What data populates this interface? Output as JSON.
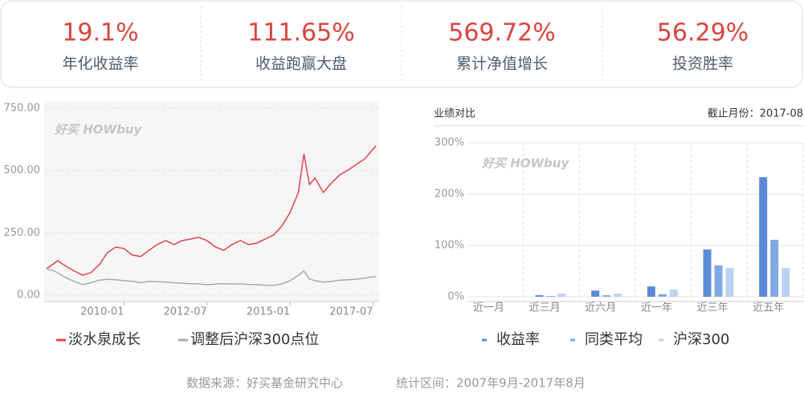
{
  "watermark": "好买 HOWbuy",
  "stats": [
    {
      "value": "19.1%",
      "label": "年化收益率"
    },
    {
      "value": "111.65%",
      "label": "收益跑赢大盘"
    },
    {
      "value": "569.72%",
      "label": "累计净值增长"
    },
    {
      "value": "56.29%",
      "label": "投资胜率"
    }
  ],
  "chart_data": [
    {
      "type": "line",
      "x": [
        "2007-09",
        "2007-11",
        "2008-01",
        "2008-04",
        "2008-07",
        "2008-10",
        "2009-01",
        "2009-04",
        "2009-07",
        "2009-10",
        "2010-01",
        "2010-04",
        "2010-07",
        "2010-10",
        "2011-01",
        "2011-04",
        "2011-07",
        "2011-10",
        "2012-01",
        "2012-04",
        "2012-07",
        "2012-10",
        "2013-01",
        "2013-04",
        "2013-07",
        "2013-10",
        "2014-01",
        "2014-04",
        "2014-07",
        "2014-10",
        "2015-01",
        "2015-04",
        "2015-06",
        "2015-08",
        "2015-10",
        "2016-01",
        "2016-04",
        "2016-07",
        "2016-10",
        "2017-01",
        "2017-04",
        "2017-06",
        "2017-08"
      ],
      "series": [
        {
          "name": "淡水泉成长",
          "color": "#e0454a",
          "values": [
            106,
            122,
            138,
            116,
            97,
            80,
            90,
            122,
            171,
            193,
            187,
            161,
            155,
            180,
            203,
            219,
            203,
            219,
            225,
            232,
            219,
            193,
            180,
            203,
            219,
            203,
            209,
            225,
            241,
            277,
            332,
            412,
            567,
            444,
            470,
            412,
            451,
            483,
            502,
            525,
            547,
            573,
            599
          ]
        },
        {
          "name": "调整后沪深300点位",
          "color": "#aaaaaa",
          "values": [
            106,
            100,
            90,
            70,
            55,
            42,
            50,
            60,
            64,
            62,
            58,
            56,
            50,
            55,
            54,
            52,
            50,
            48,
            46,
            45,
            42,
            44,
            46,
            45,
            45,
            43,
            42,
            40,
            39,
            45,
            58,
            80,
            97,
            65,
            58,
            52,
            55,
            60,
            62,
            64,
            68,
            72,
            74
          ]
        }
      ],
      "xlim": [
        "2007-09",
        "2017-08"
      ],
      "xticks": [
        "2010-01",
        "2012-07",
        "2015-01",
        "2017-07"
      ],
      "ylim": [
        0,
        750
      ],
      "yticks": [
        {
          "value": 0,
          "label": "0.00"
        },
        {
          "value": 250,
          "label": "250.00"
        },
        {
          "value": 500,
          "label": "500.00"
        },
        {
          "value": 750,
          "label": "750.00"
        }
      ],
      "grid": true
    },
    {
      "type": "bar",
      "title": "业绩对比",
      "subtitle": "截止月份：2017-08",
      "categories": [
        "近一月",
        "近三月",
        "近六月",
        "近一年",
        "近三年",
        "近五年"
      ],
      "series": [
        {
          "name": "收益率",
          "color": "#5b8bd6",
          "values": [
            0,
            3,
            12,
            20,
            92,
            233
          ]
        },
        {
          "name": "同类平均",
          "color": "#80a9e2",
          "values": [
            0,
            1.5,
            3,
            5,
            61,
            111
          ]
        },
        {
          "name": "沪深300",
          "color": "#bcd2f0",
          "values": [
            0,
            6,
            6,
            14,
            56,
            56
          ]
        }
      ],
      "ylim": [
        0,
        300
      ],
      "yticks": [
        {
          "value": 0,
          "label": "0%"
        },
        {
          "value": 100,
          "label": "100%"
        },
        {
          "value": 200,
          "label": "200%"
        },
        {
          "value": 300,
          "label": "300%"
        }
      ],
      "grid": true
    }
  ],
  "footer": {
    "source": "数据来源：好买基金研究中心",
    "period": "统计区间：2007年9月-2017年8月"
  }
}
